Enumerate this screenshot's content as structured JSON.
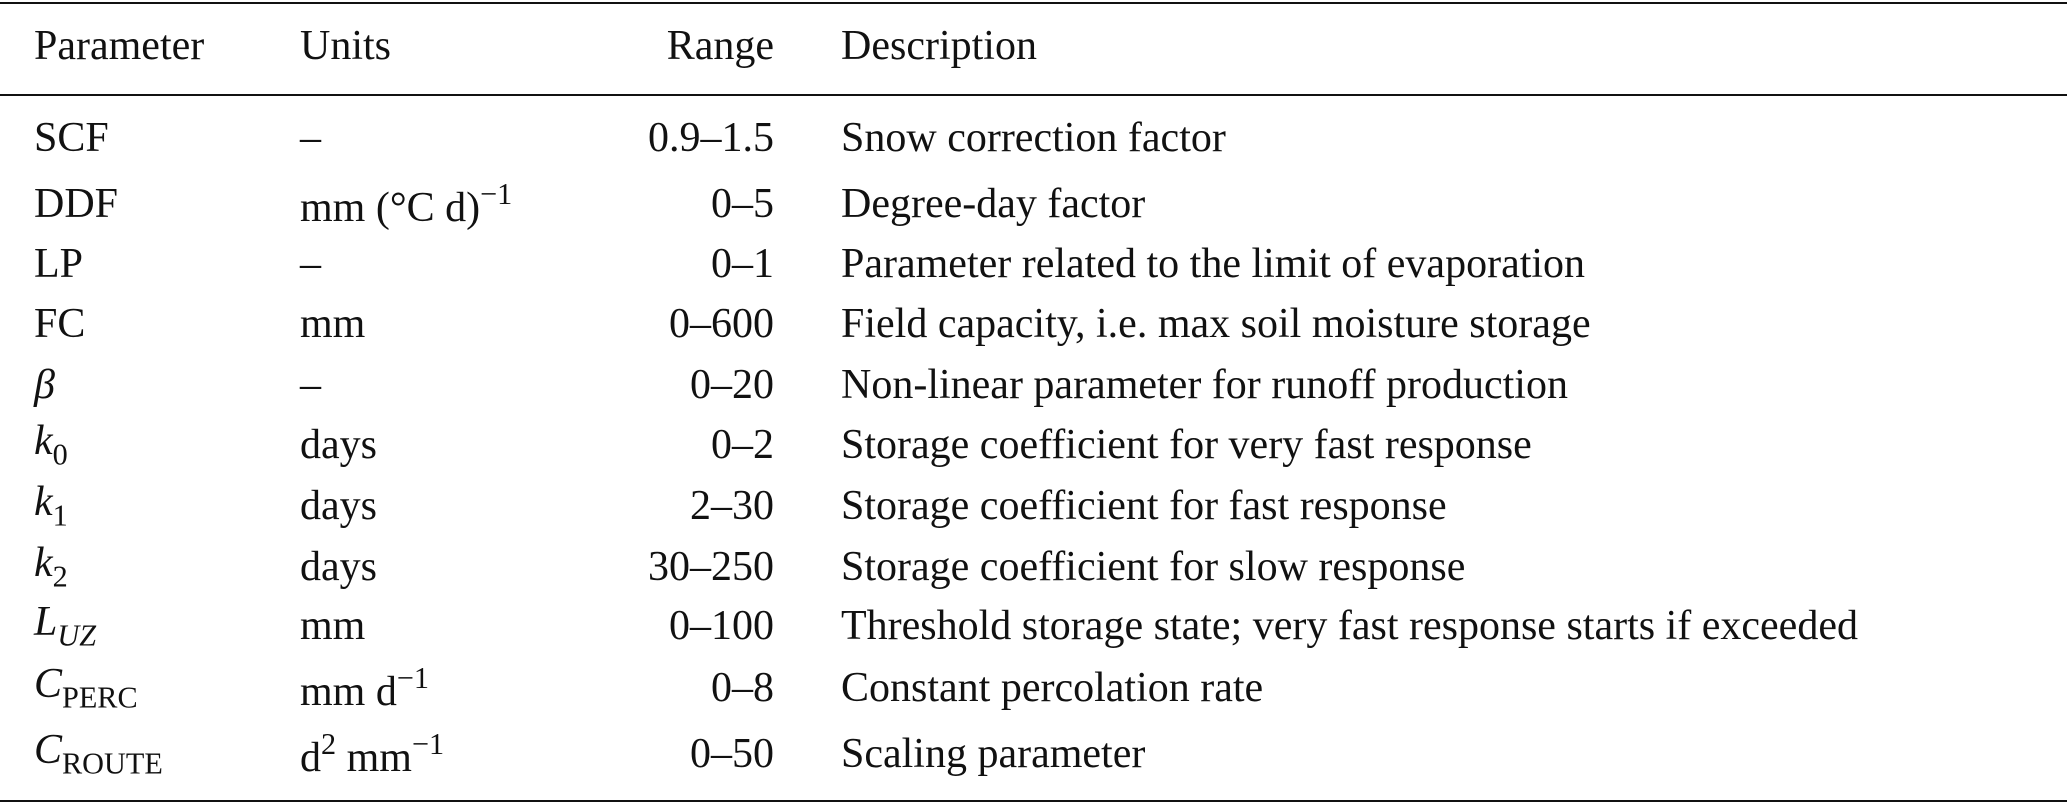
{
  "table": {
    "header": [
      "Parameter",
      "Units",
      "Range",
      "Description"
    ],
    "rows": [
      [
        [
          {
            "t": "SCF"
          }
        ],
        [
          {
            "t": "–"
          }
        ],
        [
          {
            "t": "0.9–1.5"
          }
        ],
        [
          {
            "t": "Snow correction factor"
          }
        ]
      ],
      [
        [
          {
            "t": "DDF"
          }
        ],
        [
          {
            "t": "mm (°C d)"
          },
          {
            "sup": "−1"
          }
        ],
        [
          {
            "t": "0–5"
          }
        ],
        [
          {
            "t": "Degree-day factor"
          }
        ]
      ],
      [
        [
          {
            "t": "LP"
          }
        ],
        [
          {
            "t": "–"
          }
        ],
        [
          {
            "t": "0–1"
          }
        ],
        [
          {
            "t": "Parameter related to the limit of evaporation"
          }
        ]
      ],
      [
        [
          {
            "t": "FC"
          }
        ],
        [
          {
            "t": "mm"
          }
        ],
        [
          {
            "t": "0–600"
          }
        ],
        [
          {
            "t": "Field capacity, i.e. max soil moisture storage"
          }
        ]
      ],
      [
        [
          {
            "i": "β"
          }
        ],
        [
          {
            "t": "–"
          }
        ],
        [
          {
            "t": "0–20"
          }
        ],
        [
          {
            "t": "Non-linear parameter for runoff production"
          }
        ]
      ],
      [
        [
          {
            "i": "k"
          },
          {
            "sub": "0"
          }
        ],
        [
          {
            "t": "days"
          }
        ],
        [
          {
            "t": "0–2"
          }
        ],
        [
          {
            "t": "Storage coefficient for very fast response"
          }
        ]
      ],
      [
        [
          {
            "i": "k"
          },
          {
            "sub": "1"
          }
        ],
        [
          {
            "t": "days"
          }
        ],
        [
          {
            "t": "2–30"
          }
        ],
        [
          {
            "t": "Storage coefficient for fast response"
          }
        ]
      ],
      [
        [
          {
            "i": "k"
          },
          {
            "sub": "2"
          }
        ],
        [
          {
            "t": "days"
          }
        ],
        [
          {
            "t": "30–250"
          }
        ],
        [
          {
            "t": "Storage coefficient for slow response"
          }
        ]
      ],
      [
        [
          {
            "i": "L"
          },
          {
            "isub": "UZ"
          }
        ],
        [
          {
            "t": "mm"
          }
        ],
        [
          {
            "t": "0–100"
          }
        ],
        [
          {
            "t": "Threshold storage state; very fast response starts if exceeded"
          }
        ]
      ],
      [
        [
          {
            "i": "C"
          },
          {
            "sub": "PERC"
          }
        ],
        [
          {
            "t": "mm d"
          },
          {
            "sup": "−1"
          }
        ],
        [
          {
            "t": "0–8"
          }
        ],
        [
          {
            "t": "Constant percolation rate"
          }
        ]
      ],
      [
        [
          {
            "i": "C"
          },
          {
            "sub": "ROUTE"
          }
        ],
        [
          {
            "t": "d"
          },
          {
            "sup": "2"
          },
          {
            "t": " mm"
          },
          {
            "sup": "−1"
          }
        ],
        [
          {
            "t": "0–50"
          }
        ],
        [
          {
            "t": "Scaling parameter"
          }
        ]
      ]
    ]
  }
}
